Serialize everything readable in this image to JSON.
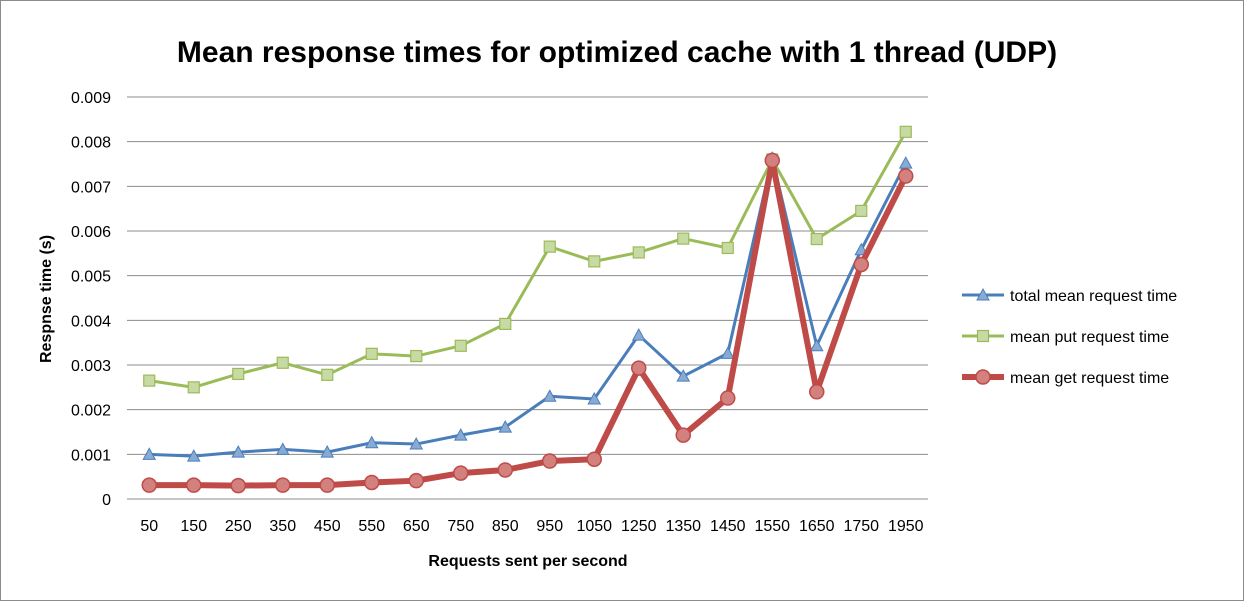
{
  "chart_data": {
    "type": "line",
    "title": "Mean response times for optimized cache with 1 thread (UDP)",
    "xlabel": "Requests sent per second",
    "ylabel": "Respnse time (s)",
    "categories": [
      "50",
      "150",
      "250",
      "350",
      "450",
      "550",
      "650",
      "750",
      "850",
      "950",
      "1050",
      "1250",
      "1350",
      "1450",
      "1550",
      "1650",
      "1750",
      "1950"
    ],
    "ylim": [
      0,
      0.009
    ],
    "yticks": [
      "0",
      "0.001",
      "0.002",
      "0.003",
      "0.004",
      "0.005",
      "0.006",
      "0.007",
      "0.008",
      "0.009"
    ],
    "grid": true,
    "legend_position": "right",
    "series": [
      {
        "name": "total mean request time",
        "color": "#4a7ebb",
        "marker": "triangle",
        "values": [
          0.001,
          0.00096,
          0.00105,
          0.00111,
          0.00105,
          0.00126,
          0.00123,
          0.00143,
          0.00161,
          0.0023,
          0.00224,
          0.00367,
          0.00275,
          0.00326,
          0.00763,
          0.00343,
          0.00558,
          0.00752
        ]
      },
      {
        "name": "mean put request time",
        "color": "#9bbb59",
        "marker": "square",
        "values": [
          0.00265,
          0.0025,
          0.0028,
          0.00305,
          0.00278,
          0.00325,
          0.0032,
          0.00343,
          0.00392,
          0.00565,
          0.00532,
          0.00552,
          0.00583,
          0.00562,
          0.0076,
          0.00582,
          0.00645,
          0.00822
        ]
      },
      {
        "name": "mean get request time",
        "color": "#be4b48",
        "marker": "circle",
        "values": [
          0.00031,
          0.00031,
          0.0003,
          0.00031,
          0.00031,
          0.00037,
          0.00041,
          0.00058,
          0.00065,
          0.00085,
          0.00089,
          0.00293,
          0.00143,
          0.00226,
          0.00758,
          0.0024,
          0.00525,
          0.00723
        ]
      }
    ]
  }
}
